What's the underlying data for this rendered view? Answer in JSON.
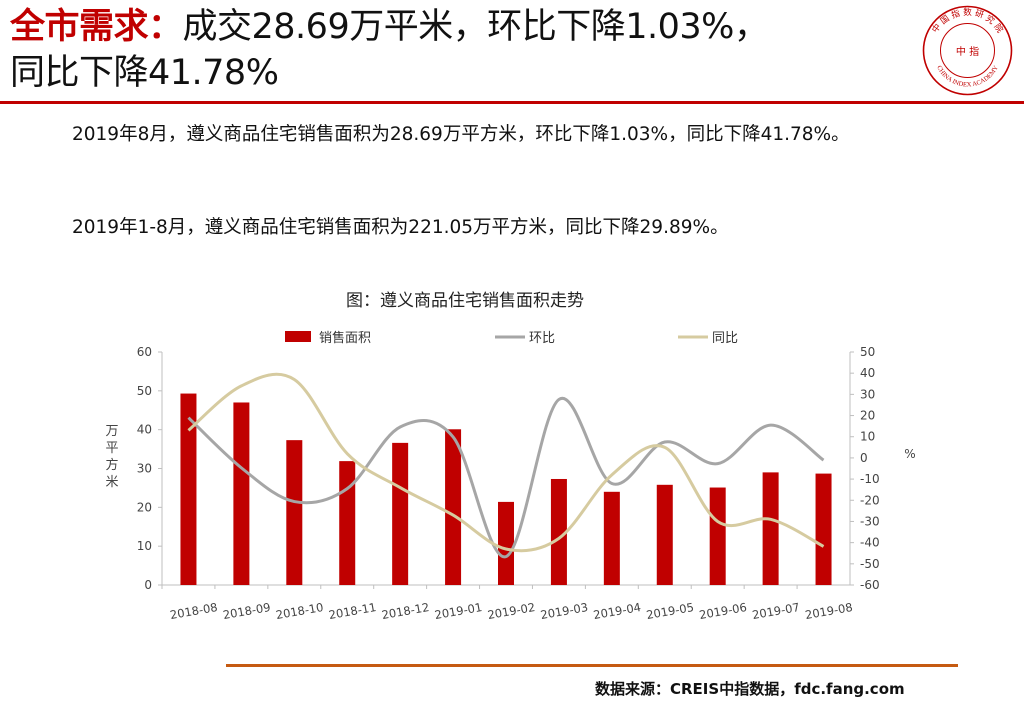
{
  "header": {
    "title_prefix": "全市需求：",
    "title_line1": "成交28.69万平米，环比下降1.03%，",
    "title_line2": "同比下降41.78%",
    "logo_center_text": "中 指",
    "logo_ring_text": "CHINA INDEX ACADEMY",
    "logo_top_text": "中 国 指 数 研 究 院"
  },
  "body": {
    "paragraph1": "2019年8月，遵义商品住宅销售面积为28.69万平方米，环比下降1.03%，同比下降41.78%。",
    "paragraph2": "2019年1-8月，遵义商品住宅销售面积为221.05万平方米，同比下降29.89%。"
  },
  "footer": {
    "source": "数据来源：CREIS中指数据，fdc.fang.com"
  },
  "colors": {
    "accent": "#c00000",
    "bar": "#c00000",
    "mom_line": "#a6a6a6",
    "yoy_line": "#d6cba0",
    "footer_rule": "#c55a11"
  },
  "chart_data": {
    "type": "bar",
    "title": "图：遵义商品住宅销售面积走势",
    "categories": [
      "2018-08",
      "2018-09",
      "2018-10",
      "2018-11",
      "2018-12",
      "2019-01",
      "2019-02",
      "2019-03",
      "2019-04",
      "2019-05",
      "2019-06",
      "2019-07",
      "2019-08"
    ],
    "series": [
      {
        "name": "销售面积",
        "type": "bar",
        "axis": "left",
        "values": [
          49.3,
          47.0,
          37.3,
          31.9,
          36.6,
          40.1,
          21.4,
          27.3,
          24.0,
          25.8,
          25.1,
          29.0,
          28.69
        ]
      },
      {
        "name": "环比",
        "type": "line",
        "axis": "right",
        "values": [
          19,
          -4.7,
          -20.6,
          -14.5,
          14.6,
          9.9,
          -46.6,
          27.6,
          -12.1,
          7.5,
          -2.7,
          15.5,
          -1.03
        ]
      },
      {
        "name": "同比",
        "type": "line",
        "axis": "right",
        "values": [
          13,
          34,
          37,
          2,
          -14,
          -27,
          -43,
          -38,
          -8,
          5,
          -30,
          -29,
          -41.78
        ]
      }
    ],
    "ylabel": "万平方米",
    "y2label": "%",
    "ylim": [
      0,
      60
    ],
    "yticks": [
      "0",
      "10",
      "20",
      "30",
      "40",
      "50",
      "60"
    ],
    "y2lim": [
      -60,
      50
    ],
    "y2ticks": [
      "50",
      "40",
      "30",
      "20",
      "10",
      "0",
      "-10",
      "-20",
      "-30",
      "-40",
      "-50",
      "-60"
    ],
    "grid": false,
    "legend": "top"
  }
}
